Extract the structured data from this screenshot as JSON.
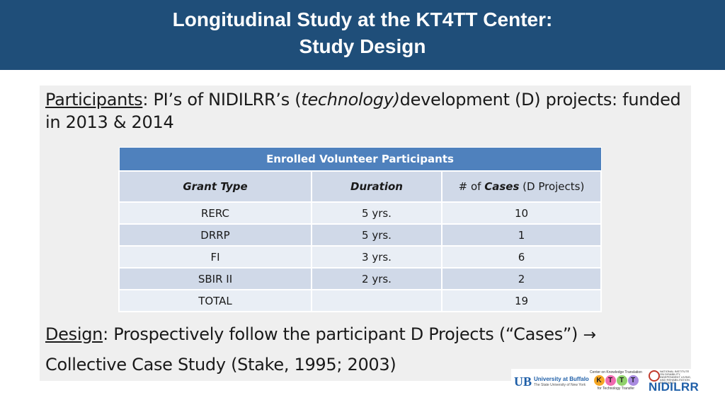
{
  "header": {
    "title_line1": "Longitudinal Study at the KT4TT Center:",
    "title_line2": "Study Design"
  },
  "participants": {
    "label": "Participants",
    "text_a": ": PI’s of NIDILRR’s (",
    "text_italic": "technology)",
    "text_b": "development (D) projects: funded in 2013 & 2014"
  },
  "table": {
    "caption": "Enrolled Volunteer Participants",
    "headers": {
      "grant_type": "Grant Type",
      "duration": "Duration",
      "cases_prefix": "# of ",
      "cases_bold": "Cases",
      "cases_suffix": " (D Projects)"
    },
    "rows": [
      {
        "grant": "RERC",
        "duration": "5 yrs.",
        "cases": "10"
      },
      {
        "grant": "DRRP",
        "duration": "5 yrs.",
        "cases": "1"
      },
      {
        "grant": "FI",
        "duration": "3 yrs.",
        "cases": "6"
      },
      {
        "grant": "SBIR II",
        "duration": "2 yrs.",
        "cases": "2"
      },
      {
        "grant": "TOTAL",
        "duration": "",
        "cases": "19"
      }
    ]
  },
  "design": {
    "label": "Design",
    "text": ": Prospectively follow the participant D Projects (“Cases”) ",
    "arrow": "→",
    "line2": "Collective Case Study (Stake, 1995; 2003)"
  },
  "logos": {
    "ub_mark": "UB",
    "ub_name": "University at Buffalo",
    "ub_sub": "The State University of New York",
    "ktt_top": "Center on Knowledge Translation",
    "ktt_letters": [
      "K",
      "T",
      "T",
      "T"
    ],
    "ktt_bottom": "for Technology Transfer",
    "nidilrr_small": "NATIONAL INSTITUTE ON DISABILITY, INDEPENDENT LIVING, AND REHABILITATION RESEARCH",
    "nidilrr_word": "NIDILRR",
    "colors": {
      "ktt_k": "#f5a623",
      "ktt_t1": "#f06ab0",
      "ktt_t2": "#8fd16a",
      "ktt_t3": "#a98be0"
    }
  }
}
